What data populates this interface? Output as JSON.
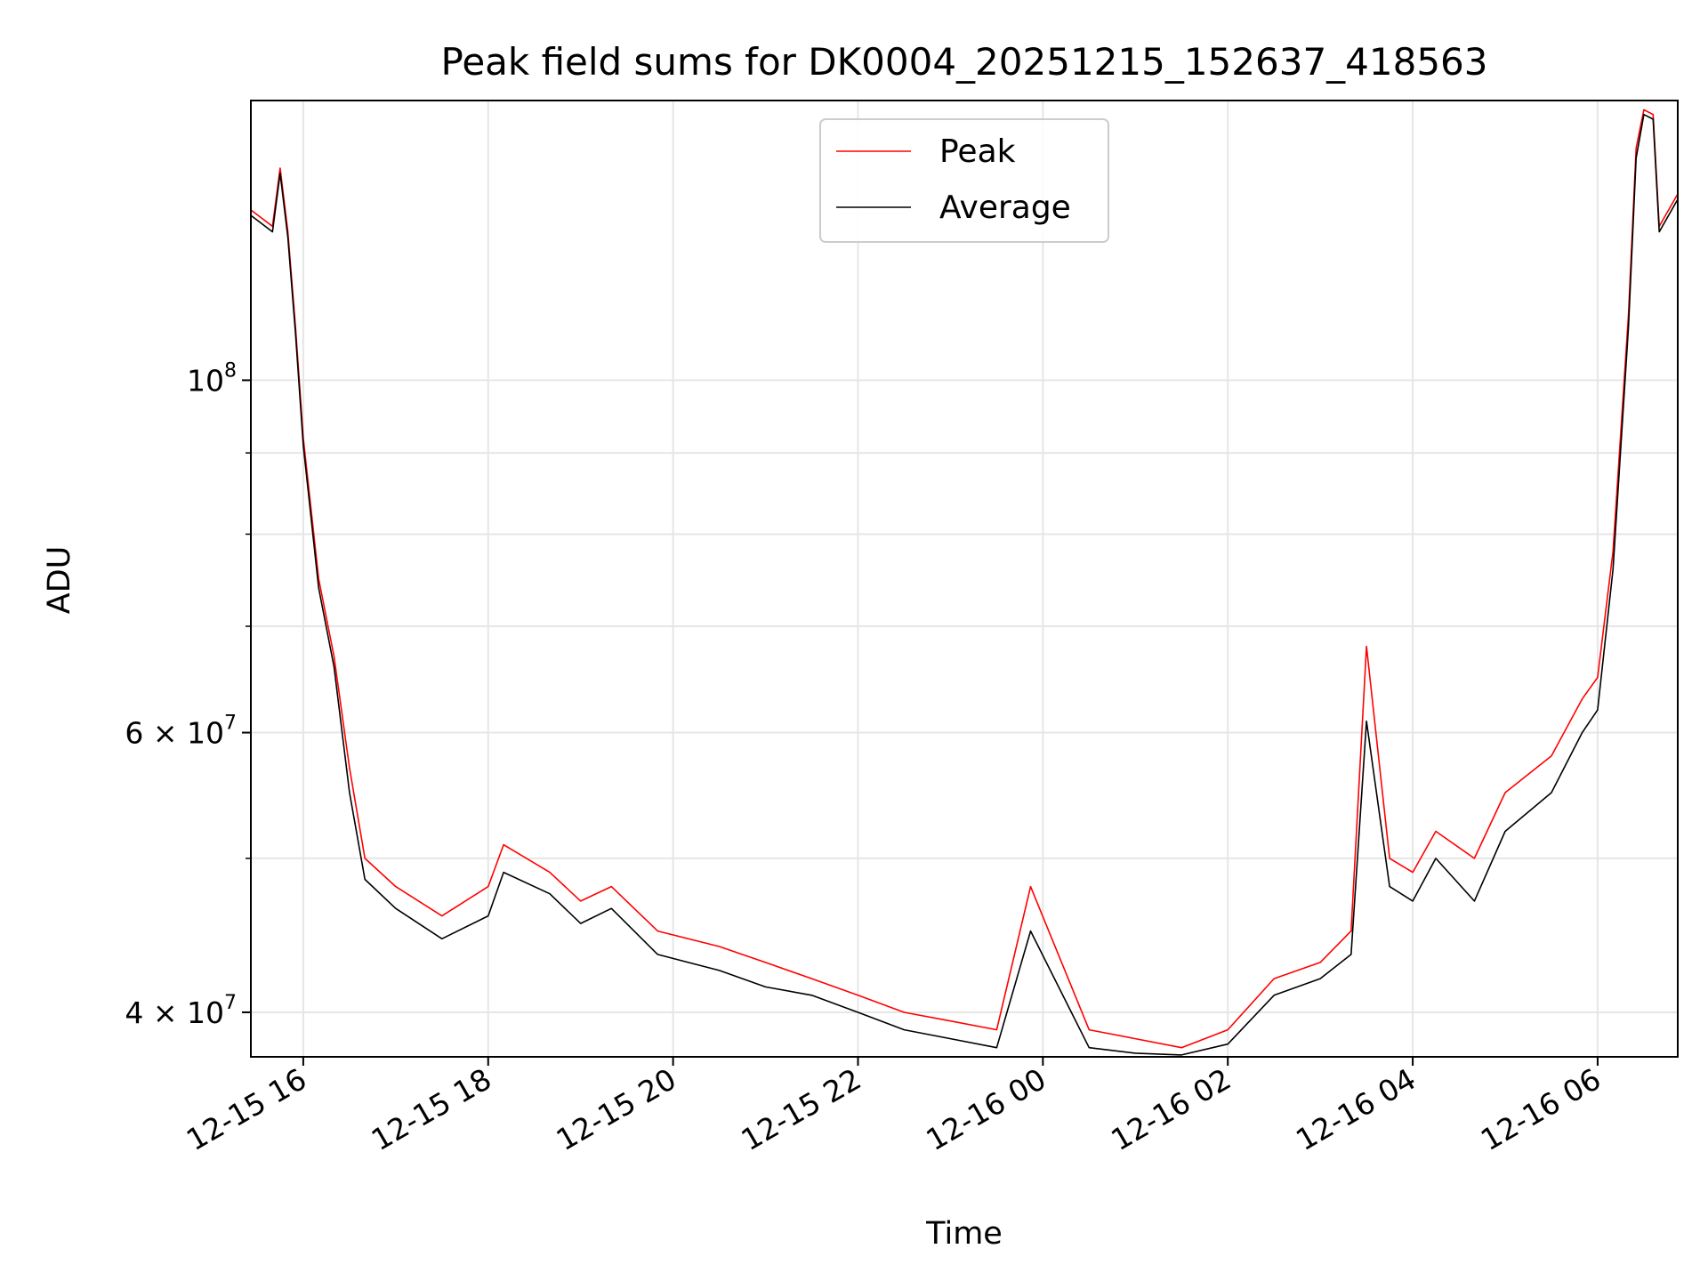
{
  "chart_data": {
    "type": "line",
    "title": "Peak field sums for DK0004_20251215_152637_418563",
    "xlabel": "Time",
    "ylabel": "ADU",
    "y_scale": "log",
    "grid": true,
    "legend_position": "upper-center",
    "xlim": [
      "2025-12-15 15:26",
      "2025-12-16 06:52"
    ],
    "ylim": [
      37500000,
      150000000
    ],
    "x_ticks": [
      {
        "value": "2025-12-15 16:00",
        "label": "12-15 16"
      },
      {
        "value": "2025-12-15 18:00",
        "label": "12-15 18"
      },
      {
        "value": "2025-12-15 20:00",
        "label": "12-15 20"
      },
      {
        "value": "2025-12-15 22:00",
        "label": "12-15 22"
      },
      {
        "value": "2025-12-16 00:00",
        "label": "12-16 00"
      },
      {
        "value": "2025-12-16 02:00",
        "label": "12-16 02"
      },
      {
        "value": "2025-12-16 04:00",
        "label": "12-16 04"
      },
      {
        "value": "2025-12-16 06:00",
        "label": "12-16 06"
      }
    ],
    "y_major_ticks": [
      {
        "value": 40000000,
        "base": "4 × 10",
        "exp": "7"
      },
      {
        "value": 60000000,
        "base": "6 × 10",
        "exp": "7"
      },
      {
        "value": 100000000,
        "base": "10",
        "exp": "8"
      }
    ],
    "y_minor_ticks": [
      50000000,
      70000000,
      80000000,
      90000000
    ],
    "series": [
      {
        "name": "Peak",
        "color": "#ff0000",
        "x": [
          "2025-12-15 15:26",
          "2025-12-15 15:40",
          "2025-12-15 15:45",
          "2025-12-15 15:50",
          "2025-12-15 15:55",
          "2025-12-15 16:00",
          "2025-12-15 16:10",
          "2025-12-15 16:20",
          "2025-12-15 16:30",
          "2025-12-15 16:40",
          "2025-12-15 17:00",
          "2025-12-15 17:30",
          "2025-12-15 18:00",
          "2025-12-15 18:10",
          "2025-12-15 18:40",
          "2025-12-15 19:00",
          "2025-12-15 19:20",
          "2025-12-15 19:50",
          "2025-12-15 20:30",
          "2025-12-15 21:00",
          "2025-12-15 21:30",
          "2025-12-15 22:00",
          "2025-12-15 22:30",
          "2025-12-15 23:00",
          "2025-12-15 23:30",
          "2025-12-15 23:52",
          "2025-12-16 00:30",
          "2025-12-16 01:00",
          "2025-12-16 01:30",
          "2025-12-16 02:00",
          "2025-12-16 02:30",
          "2025-12-16 03:00",
          "2025-12-16 03:20",
          "2025-12-16 03:30",
          "2025-12-16 03:45",
          "2025-12-16 04:00",
          "2025-12-16 04:15",
          "2025-12-16 04:40",
          "2025-12-16 05:00",
          "2025-12-16 05:30",
          "2025-12-16 05:50",
          "2025-12-16 06:00",
          "2025-12-16 06:10",
          "2025-12-16 06:20",
          "2025-12-16 06:25",
          "2025-12-16 06:30",
          "2025-12-16 06:36",
          "2025-12-16 06:40",
          "2025-12-16 06:52"
        ],
        "values": [
          128000000,
          125000000,
          136000000,
          124000000,
          108000000,
          92000000,
          75000000,
          67000000,
          57000000,
          50000000,
          48000000,
          46000000,
          48000000,
          51000000,
          49000000,
          47000000,
          48000000,
          45000000,
          44000000,
          43000000,
          42000000,
          41000000,
          40000000,
          39500000,
          39000000,
          48000000,
          39000000,
          38500000,
          38000000,
          39000000,
          42000000,
          43000000,
          45000000,
          68000000,
          50000000,
          49000000,
          52000000,
          50000000,
          55000000,
          58000000,
          63000000,
          65000000,
          78000000,
          110000000,
          140000000,
          148000000,
          147000000,
          125000000,
          131000000
        ]
      },
      {
        "name": "Average",
        "color": "#000000",
        "x": [
          "2025-12-15 15:26",
          "2025-12-15 15:40",
          "2025-12-15 15:45",
          "2025-12-15 15:50",
          "2025-12-15 15:55",
          "2025-12-15 16:00",
          "2025-12-15 16:10",
          "2025-12-15 16:20",
          "2025-12-15 16:30",
          "2025-12-15 16:40",
          "2025-12-15 17:00",
          "2025-12-15 17:30",
          "2025-12-15 18:00",
          "2025-12-15 18:10",
          "2025-12-15 18:40",
          "2025-12-15 19:00",
          "2025-12-15 19:20",
          "2025-12-15 19:50",
          "2025-12-15 20:30",
          "2025-12-15 21:00",
          "2025-12-15 21:30",
          "2025-12-15 22:00",
          "2025-12-15 22:30",
          "2025-12-15 23:00",
          "2025-12-15 23:30",
          "2025-12-15 23:52",
          "2025-12-16 00:30",
          "2025-12-16 01:00",
          "2025-12-16 01:30",
          "2025-12-16 02:00",
          "2025-12-16 02:30",
          "2025-12-16 03:00",
          "2025-12-16 03:20",
          "2025-12-16 03:30",
          "2025-12-16 03:45",
          "2025-12-16 04:00",
          "2025-12-16 04:15",
          "2025-12-16 04:40",
          "2025-12-16 05:00",
          "2025-12-16 05:30",
          "2025-12-16 05:50",
          "2025-12-16 06:00",
          "2025-12-16 06:10",
          "2025-12-16 06:20",
          "2025-12-16 06:25",
          "2025-12-16 06:30",
          "2025-12-16 06:36",
          "2025-12-16 06:40",
          "2025-12-16 06:52"
        ],
        "values": [
          127000000,
          124000000,
          135000000,
          123000000,
          107000000,
          91000000,
          74000000,
          66000000,
          55000000,
          48500000,
          46500000,
          44500000,
          46000000,
          49000000,
          47500000,
          45500000,
          46500000,
          43500000,
          42500000,
          41500000,
          41000000,
          40000000,
          39000000,
          38500000,
          38000000,
          45000000,
          38000000,
          37700000,
          37600000,
          38200000,
          41000000,
          42000000,
          43500000,
          61000000,
          48000000,
          47000000,
          50000000,
          47000000,
          52000000,
          55000000,
          60000000,
          62000000,
          76000000,
          108000000,
          138000000,
          147000000,
          146000000,
          124000000,
          130000000
        ]
      }
    ]
  }
}
